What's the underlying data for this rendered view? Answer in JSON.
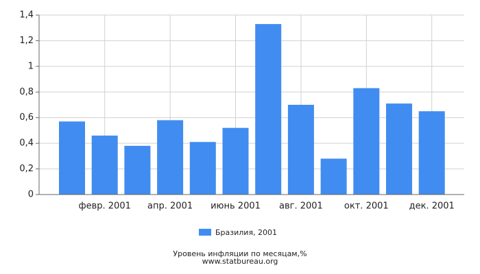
{
  "chart_data": {
    "type": "bar",
    "title": "Уровень инфляции по месяцам,%",
    "subtitle": "www.statbureau.org",
    "categories": [
      null,
      "февр. 2001",
      null,
      "апр. 2001",
      null,
      "июнь 2001",
      null,
      "авг. 2001",
      null,
      "окт. 2001",
      null,
      "дек. 2001"
    ],
    "series": [
      {
        "name": "Бразилия, 2001",
        "color": "#418cf0",
        "values": [
          0.57,
          0.46,
          0.38,
          0.58,
          0.41,
          0.52,
          1.33,
          0.7,
          0.28,
          0.83,
          0.71,
          0.65
        ]
      }
    ],
    "ylim": [
      0,
      1.4
    ],
    "yticks": [
      0,
      {
        "value": 0.2,
        "label": "0,2"
      },
      {
        "value": 0.4,
        "label": "0,4"
      },
      {
        "value": 0.6,
        "label": "0,6"
      },
      {
        "value": 0.8,
        "label": "0,8"
      },
      1,
      {
        "value": 1.2,
        "label": "1,2"
      },
      {
        "value": 1.4,
        "label": "1,4"
      }
    ],
    "grid": true
  }
}
